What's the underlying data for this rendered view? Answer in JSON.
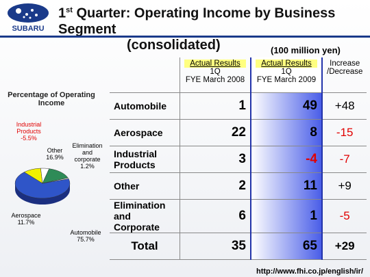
{
  "header": {
    "logo_text": "SUBARU",
    "title_number": "1",
    "title_sup": "st",
    "title_line1": "Quarter: Operating Income by Business Segment",
    "title_line2": "(consolidated)"
  },
  "unit": "(100 million yen)",
  "table": {
    "columns": [
      {
        "highlight": "Actual Results",
        "line1": "1Q",
        "line2": "FYE March 2008"
      },
      {
        "highlight": "Actual Results",
        "line1": "1Q",
        "line2": "FYE March 2009"
      }
    ],
    "change_header": "Increase /Decrease",
    "rows": [
      {
        "name": "Automobile",
        "prev": 1,
        "curr": 49,
        "change": "+48"
      },
      {
        "name": "Aerospace",
        "prev": 22,
        "curr": 8,
        "change": "-15"
      },
      {
        "name": "Industrial Products",
        "prev": 3,
        "curr": -4,
        "change": "-7"
      },
      {
        "name": "Other",
        "prev": 2,
        "curr": 11,
        "change": "+9"
      },
      {
        "name": "Elimination and Corporate",
        "prev": 6,
        "curr": 1,
        "change": "-5"
      },
      {
        "name": "Total",
        "prev": 35,
        "curr": 65,
        "change": "+29"
      }
    ]
  },
  "chart_data": {
    "type": "pie",
    "title": "Percentage of Operating Income",
    "categories": [
      "Automobile",
      "Aerospace",
      "Industrial Products",
      "Other",
      "Elimination and corporate"
    ],
    "values": [
      75.7,
      11.7,
      -5.5,
      16.9,
      1.2
    ],
    "value_labels": [
      "75.7%",
      "11.7%",
      "-5.5%",
      "16.9%",
      "1.2%"
    ],
    "colors": [
      "#2f55c8",
      "#f2f000",
      "#ffffff",
      "#2e8b57",
      "#f4f4f4"
    ]
  },
  "footer_url": "http://www.fhi.co.jp/english/ir/"
}
